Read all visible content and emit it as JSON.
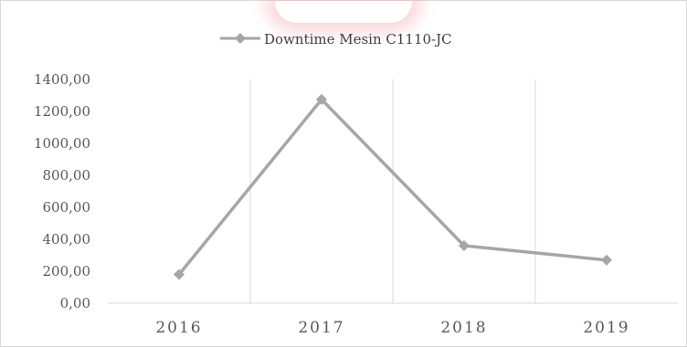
{
  "chart_data": {
    "type": "line",
    "categories": [
      "2016",
      "2017",
      "2018",
      "2019"
    ],
    "series": [
      {
        "name": "Downtime Mesin C1110-JC",
        "values": [
          180,
          1275,
          360,
          270
        ]
      }
    ],
    "y_ticks": [
      "0,00",
      "200,00",
      "400,00",
      "600,00",
      "800,00",
      "1000,00",
      "1200,00",
      "1400,00"
    ],
    "ylim": [
      0,
      1400
    ],
    "grid": "vertical",
    "legend": "top",
    "colors": {
      "line": "#a6a6a6",
      "marker": "#a6a6a6",
      "grid": "#d9d9d9",
      "axis": "#d9d9d9"
    }
  }
}
